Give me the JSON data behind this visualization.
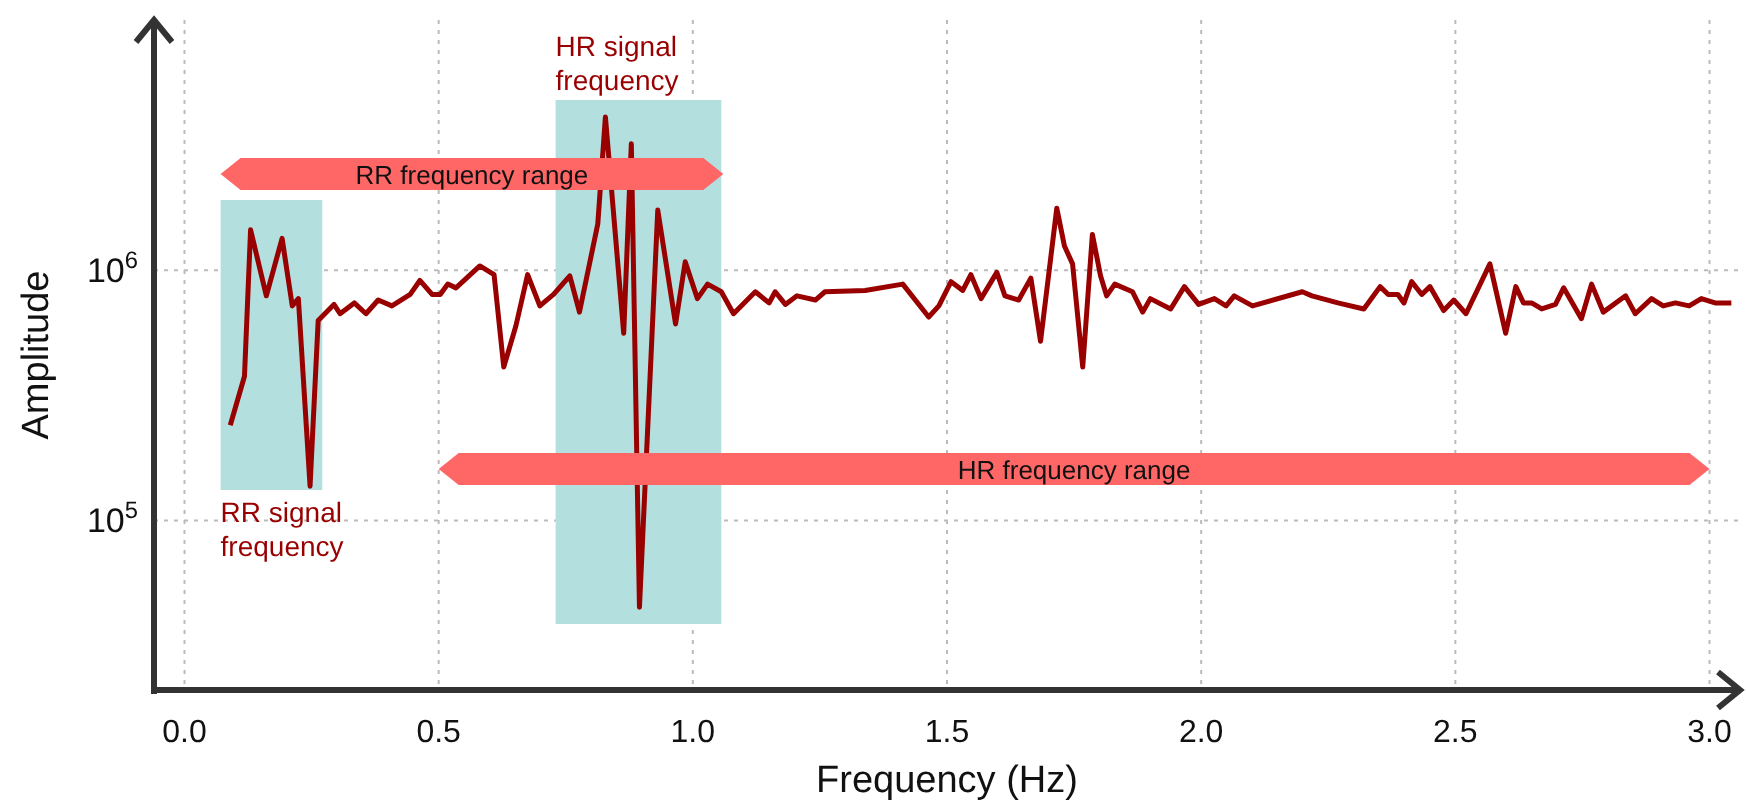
{
  "chart_data": {
    "type": "line",
    "xlabel": "Frequency (Hz)",
    "ylabel": "Amplitude",
    "log": "y",
    "grid": true,
    "marker": "none",
    "line_style": "solid",
    "xlim": [
      -0.06,
      3.06
    ],
    "ylim": [
      21000,
      10000000
    ],
    "xticks": [
      {
        "value": 0,
        "label": "0.0"
      },
      {
        "value": 0.5,
        "label": "0.5"
      },
      {
        "value": 1,
        "label": "1.0"
      },
      {
        "value": 1.5,
        "label": "1.5"
      },
      {
        "value": 2,
        "label": "2.0"
      },
      {
        "value": 2.5,
        "label": "2.5"
      },
      {
        "value": 3,
        "label": "3.0"
      }
    ],
    "yticks": [
      {
        "value": 100000,
        "label": "10$^{5}$"
      },
      {
        "value": 1000000,
        "label": "10$^{6}$"
      }
    ],
    "bands": [
      {
        "axis": "x",
        "from": 0.071,
        "to": 0.271,
        "label": "RR signal frequency",
        "color": "#b3dfdf"
      },
      {
        "axis": "x",
        "from": 0.73,
        "to": 1.056,
        "label": "HR signal frequency",
        "color": "#b3dfdf"
      },
      {
        "axis": "x",
        "from": 0.071,
        "to": 1.06,
        "label": "RR frequency range",
        "color": "#ff6666"
      },
      {
        "axis": "x",
        "from": 0.5,
        "to": 3.0,
        "label": "HR frequency range",
        "color": "#ff6666"
      }
    ],
    "series": [
      {
        "color": "#990000",
        "x": [
          0.09,
          0.118,
          0.13,
          0.161,
          0.192,
          0.212,
          0.224,
          0.247,
          0.263,
          0.294,
          0.306,
          0.334,
          0.357,
          0.381,
          0.408,
          0.444,
          0.463,
          0.487,
          0.503,
          0.518,
          0.534,
          0.581,
          0.609,
          0.628,
          0.652,
          0.675,
          0.699,
          0.726,
          0.758,
          0.777,
          0.813,
          0.828,
          0.864,
          0.879,
          0.895,
          0.931,
          0.966,
          0.985,
          1.009,
          1.029,
          1.056,
          1.08,
          1.123,
          1.15,
          1.162,
          1.182,
          1.205,
          1.241,
          1.26,
          1.339,
          1.413,
          1.464,
          1.484,
          1.508,
          1.531,
          1.547,
          1.567,
          1.598,
          1.614,
          1.641,
          1.665,
          1.684,
          1.716,
          1.731,
          1.747,
          1.767,
          1.786,
          1.802,
          1.814,
          1.83,
          1.865,
          1.885,
          1.9,
          1.94,
          1.967,
          1.995,
          2.026,
          2.049,
          2.065,
          2.101,
          2.199,
          2.218,
          2.269,
          2.32,
          2.352,
          2.368,
          2.387,
          2.399,
          2.414,
          2.434,
          2.45,
          2.477,
          2.497,
          2.521,
          2.568,
          2.599,
          2.619,
          2.634,
          2.65,
          2.67,
          2.697,
          2.713,
          2.748,
          2.768,
          2.791,
          2.835,
          2.854,
          2.886,
          2.909,
          2.933,
          2.96,
          2.984,
          3.011,
          3.043
        ],
        "values": [
          240000,
          377000,
          1450000,
          790000,
          1340000,
          720000,
          770000,
          137000,
          630000,
          730000,
          670000,
          740000,
          670000,
          760000,
          720000,
          800000,
          910000,
          800000,
          800000,
          880000,
          850000,
          1040000,
          960000,
          410000,
          600000,
          960000,
          720000,
          800000,
          950000,
          680000,
          1530000,
          4100000,
          560000,
          3200000,
          45000,
          1740000,
          610000,
          1080000,
          770000,
          880000,
          820000,
          670000,
          820000,
          740000,
          820000,
          730000,
          790000,
          760000,
          820000,
          830000,
          880000,
          650000,
          720000,
          900000,
          830000,
          960000,
          770000,
          980000,
          790000,
          760000,
          930000,
          520000,
          1770000,
          1250000,
          1060000,
          410000,
          1390000,
          950000,
          790000,
          880000,
          820000,
          680000,
          770000,
          700000,
          860000,
          730000,
          770000,
          720000,
          790000,
          720000,
          820000,
          790000,
          740000,
          700000,
          860000,
          800000,
          800000,
          740000,
          900000,
          800000,
          860000,
          690000,
          760000,
          670000,
          1060000,
          560000,
          860000,
          740000,
          740000,
          700000,
          730000,
          850000,
          640000,
          880000,
          680000,
          790000,
          670000,
          770000,
          720000,
          740000,
          720000,
          770000,
          740000,
          740000
        ]
      }
    ]
  }
}
